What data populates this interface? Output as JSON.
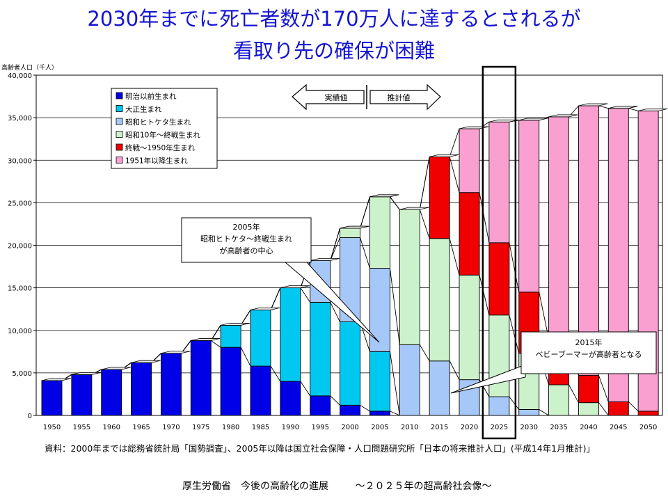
{
  "title_line1": "2030年までに死亡者数が170万人に達するとされるが",
  "title_line2": "看取り先の確保が困難",
  "source_note": "資料：2000年までは総務省統計局「国勢調査」、2005年以降は国立社会保障・人口問題研究所「日本の将来推計人口」(平成14年1月推計)」",
  "footer": {
    "org": "厚生労働省　今後の高齢化の進展",
    "subtitle": "～２０２５年の超高齢社会像～"
  },
  "chart_data": {
    "type": "bar",
    "stacked": true,
    "ylabel": "高齢者人口（千人）",
    "ylim": [
      0,
      40000
    ],
    "yticks": [
      0,
      5000,
      10000,
      15000,
      20000,
      25000,
      30000,
      35000,
      40000
    ],
    "ytick_labels": [
      "0",
      "5,000",
      "10,000",
      "15,000",
      "20,000",
      "25,000",
      "30,000",
      "35,000",
      "40,000"
    ],
    "grid": true,
    "categories": [
      "1950",
      "1955",
      "1960",
      "1965",
      "1970",
      "1975",
      "1980",
      "1985",
      "1990",
      "1995",
      "2000",
      "2005",
      "2010",
      "2015",
      "2020",
      "2025",
      "2030",
      "2035",
      "2040",
      "2045",
      "2050"
    ],
    "series": [
      {
        "name": "明治以前生まれ",
        "color": "#0000e6",
        "values": [
          4100,
          4800,
          5400,
          6200,
          7300,
          8800,
          8000,
          5800,
          4000,
          2300,
          1200,
          500,
          0,
          0,
          0,
          0,
          0,
          0,
          0,
          0,
          0
        ]
      },
      {
        "name": "大正生まれ",
        "color": "#00c8f0",
        "values": [
          0,
          0,
          0,
          0,
          0,
          0,
          2600,
          6600,
          11000,
          11000,
          9800,
          7000,
          0,
          0,
          0,
          0,
          0,
          0,
          0,
          0,
          0
        ]
      },
      {
        "name": "昭和ヒトケタ生まれ",
        "color": "#a6c8f8",
        "values": [
          0,
          0,
          0,
          0,
          0,
          0,
          0,
          0,
          0,
          4900,
          9900,
          9800,
          8300,
          6400,
          4200,
          2200,
          700,
          0,
          0,
          0,
          0
        ]
      },
      {
        "name": "昭和10年～終戦生まれ",
        "color": "#ccf2cc",
        "values": [
          0,
          0,
          0,
          0,
          0,
          0,
          0,
          0,
          0,
          0,
          1100,
          8400,
          15900,
          14400,
          12300,
          9600,
          6600,
          3600,
          1500,
          0,
          0
        ]
      },
      {
        "name": "終戦～1950年生まれ",
        "color": "#f00000",
        "values": [
          0,
          0,
          0,
          0,
          0,
          0,
          0,
          0,
          0,
          0,
          0,
          0,
          0,
          9600,
          9700,
          8500,
          7200,
          5400,
          3200,
          1600,
          500
        ]
      },
      {
        "name": "1951年以降生まれ",
        "color": "#f9a0d0",
        "values": [
          0,
          0,
          0,
          0,
          0,
          0,
          0,
          0,
          0,
          0,
          0,
          0,
          0,
          0,
          7500,
          14200,
          20200,
          26100,
          31700,
          34500,
          35300
        ]
      }
    ],
    "legend_position": "top-left",
    "annotations": [
      {
        "text": "実績値",
        "kind": "arrow-left"
      },
      {
        "text": "推計値",
        "kind": "arrow-right"
      },
      {
        "text": "2005年\n昭和ヒトケタ～終戦生まれ\nが高齢者の中心",
        "kind": "callout"
      },
      {
        "text": "2015年\nベビーブーマーが高齢者となる",
        "kind": "callout"
      }
    ],
    "highlight_category": "2025"
  }
}
